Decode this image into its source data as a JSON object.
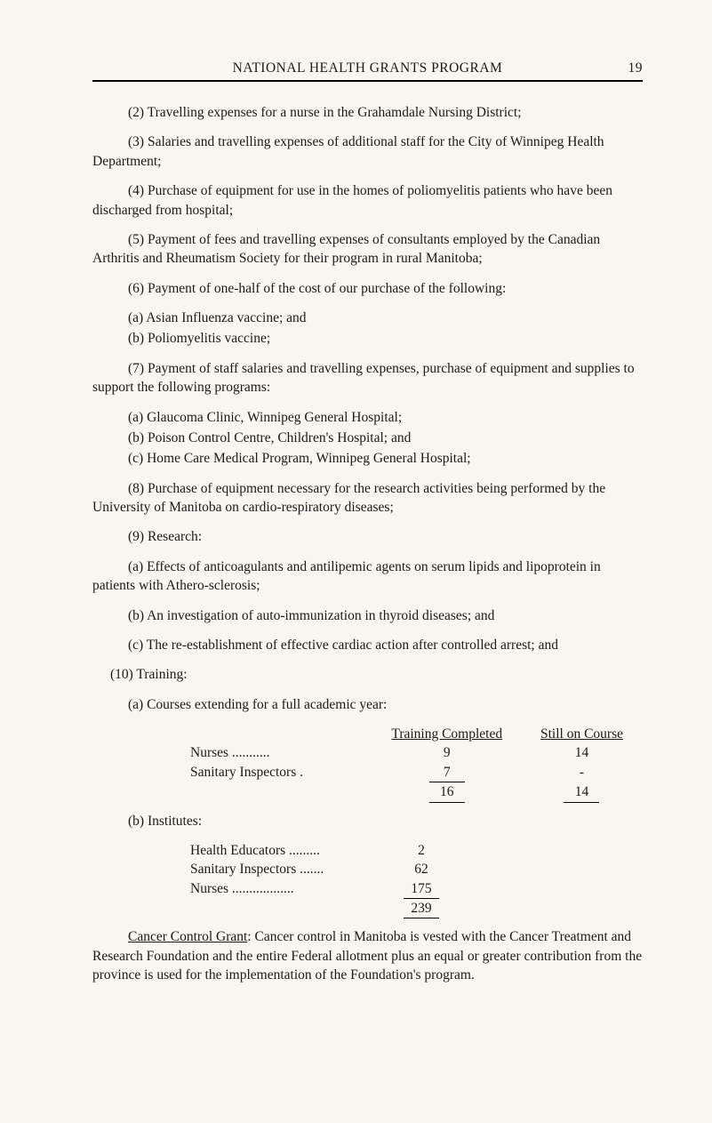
{
  "header": {
    "title": "NATIONAL HEALTH GRANTS PROGRAM",
    "page_number": "19"
  },
  "items": {
    "p2": "(2)  Travelling expenses for a nurse in the Grahamdale Nursing District;",
    "p3": "(3)  Salaries and travelling expenses of additional staff for the City of Winnipeg Health Department;",
    "p4": "(4)  Purchase of equipment for use in the homes of poliomyelitis patients who have been discharged from hospital;",
    "p5": "(5)  Payment of fees and travelling expenses of consultants employed by the Canadian Arthritis and Rheumatism Society for their program in rural Manitoba;",
    "p6": "(6)  Payment of one-half of the cost of our purchase of the following:",
    "p6a": "(a)  Asian Influenza vaccine;  and",
    "p6b": "(b)  Poliomyelitis vaccine;",
    "p7": "(7)  Payment of staff salaries and travelling expenses, purchase of equipment and supplies to support the following programs:",
    "p7a": "(a)  Glaucoma Clinic, Winnipeg General Hospital;",
    "p7b": "(b)  Poison Control Centre, Children's Hospital;  and",
    "p7c": "(c)  Home Care Medical Program, Winnipeg General Hospital;",
    "p8": "(8)  Purchase of equipment necessary for the research activities being performed by the University of Manitoba on cardio-respiratory diseases;",
    "p9": "(9)  Research:",
    "p9a": "(a)  Effects of anticoagulants and antilipemic agents on serum lipids and lipoprotein in patients with Athero-sclerosis;",
    "p9b": "(b)  An investigation of auto-immunization in thyroid diseases;  and",
    "p9c": "(c)  The re-establishment of effective cardiac action after controlled arrest;  and",
    "p10": "(10)  Training:",
    "p10a": "(a)  Courses extending for a full academic year:",
    "p10b": "(b)  Institutes:"
  },
  "table_a": {
    "headers": {
      "c1": "Training Completed",
      "c2": "Still on Course"
    },
    "rows": [
      {
        "label": "Nurses ...........",
        "c1": "9",
        "c2": "14"
      },
      {
        "label": "Sanitary Inspectors .",
        "c1": "7",
        "c2": "-"
      }
    ],
    "total": {
      "c1": "16",
      "c2": "14"
    }
  },
  "table_b": {
    "rows": [
      {
        "label": "Health Educators .........",
        "c1": "2"
      },
      {
        "label": "Sanitary Inspectors .......",
        "c1": "62"
      },
      {
        "label": "Nurses ..................",
        "c1": "175"
      }
    ],
    "total": {
      "c1": "239"
    }
  },
  "closing": {
    "lead_underlined": "Cancer Control Grant",
    "rest": ":  Cancer control in Manitoba is vested with the Cancer Treatment and Research Foundation and the entire Federal allotment plus an equal or greater contribution from the province is used for the implementation of the Foundation's program."
  }
}
